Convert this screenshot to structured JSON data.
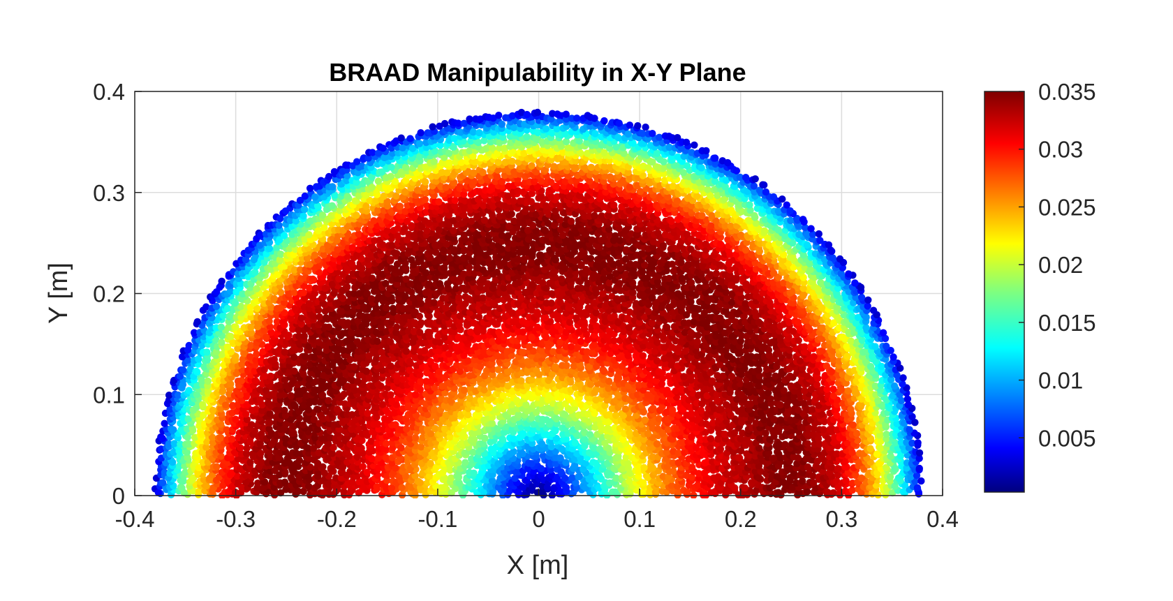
{
  "chart_data": {
    "type": "scatter",
    "title": "BRAAD Manipulability in X-Y Plane",
    "xlabel": "X [m]",
    "ylabel": "Y [m]",
    "xlim": [
      -0.4,
      0.4
    ],
    "ylim": [
      0,
      0.4
    ],
    "x_ticks": [
      "-0.4",
      "-0.3",
      "-0.2",
      "-0.1",
      "0",
      "0.1",
      "0.2",
      "0.3",
      "0.4"
    ],
    "y_ticks": [
      "0",
      "0.1",
      "0.2",
      "0.3",
      "0.4"
    ],
    "grid": true,
    "colormap": "jet",
    "colorbar": {
      "range": [
        0.0003,
        0.035
      ],
      "ticks": [
        "0.005",
        "0.01",
        "0.015",
        "0.02",
        "0.025",
        "0.03",
        "0.035"
      ]
    },
    "workspace": {
      "shape": "upper half-disc",
      "center": [
        0,
        0
      ],
      "radius_m": 0.38,
      "radial_profile": {
        "r_m": [
          0.0,
          0.03,
          0.06,
          0.09,
          0.12,
          0.15,
          0.18,
          0.21,
          0.24,
          0.27,
          0.3,
          0.32,
          0.34,
          0.355,
          0.37,
          0.38
        ],
        "manipulability": [
          0.0005,
          0.006,
          0.013,
          0.02,
          0.0255,
          0.0295,
          0.032,
          0.0335,
          0.035,
          0.0345,
          0.032,
          0.028,
          0.022,
          0.016,
          0.009,
          0.003
        ]
      }
    }
  }
}
